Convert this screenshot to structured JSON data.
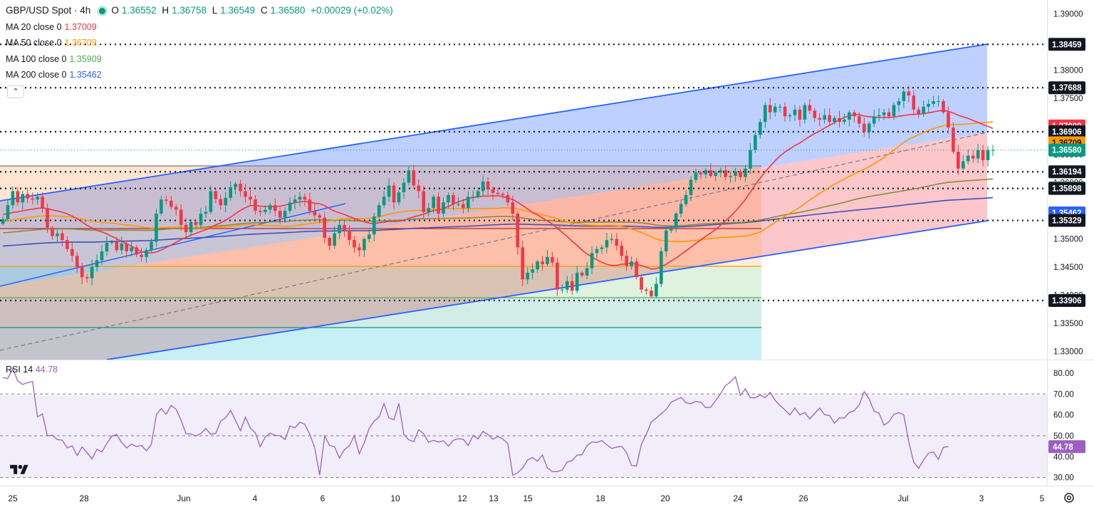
{
  "header": {
    "symbol": "GBP/USD Spot · 4h",
    "open_label": "O",
    "open": "1.36552",
    "high_label": "H",
    "high": "1.36758",
    "low_label": "L",
    "low": "1.36549",
    "close_label": "C",
    "close": "1.36580",
    "change": "+0.00029 (+0.02%)"
  },
  "indicators": [
    {
      "label": "MA 20 close 0",
      "value": "1.37009",
      "color": "#f23645"
    },
    {
      "label": "MA 50 close 0",
      "value": "1.36709",
      "color": "#ff9800"
    },
    {
      "label": "MA 100 close 0",
      "value": "1.35909",
      "color": "#4caf50"
    },
    {
      "label": "MA 200 close 0",
      "value": "1.35462",
      "color": "#2962ff"
    }
  ],
  "rsi": {
    "label": "RSI 14",
    "value": "44.78"
  },
  "colors": {
    "up": "#089981",
    "down": "#f23645",
    "channel": "#2962ff",
    "rsi": "#9c5fc4"
  },
  "chart_data": {
    "type": "candlestick",
    "title": "GBP/USD Spot · 4h",
    "x_ticks": [
      "25",
      "28",
      "Jun",
      "4",
      "6",
      "10",
      "12",
      "13",
      "15",
      "18",
      "20",
      "24",
      "26",
      "Jul",
      "3",
      "5"
    ],
    "y_ticks": [
      "1.39000",
      "1.38000",
      "1.37500",
      "1.37000",
      "1.36500",
      "1.36000",
      "1.35500",
      "1.35000",
      "1.34500",
      "1.34000",
      "1.33500",
      "1.33000"
    ],
    "ylim": [
      1.3265,
      1.3915
    ],
    "horizontal_levels": [
      1.38459,
      1.37688,
      1.36906,
      1.36194,
      1.35898,
      1.35329,
      1.33906
    ],
    "price_labels": [
      {
        "text": "1.38459",
        "value": 1.38459,
        "style": "level"
      },
      {
        "text": "1.37688",
        "value": 1.37688,
        "style": "level"
      },
      {
        "text": "1.37009",
        "value": 1.37009,
        "style": "ma20"
      },
      {
        "text": "1.36906",
        "value": 1.36906,
        "style": "level"
      },
      {
        "text": "1.36709",
        "value": 1.36709,
        "style": "ma50"
      },
      {
        "text": "1.36580",
        "value": 1.3658,
        "style": "last"
      },
      {
        "text": "1.36194",
        "value": 1.36194,
        "style": "level"
      },
      {
        "text": "1.35909",
        "value": 1.35909,
        "style": "ma100"
      },
      {
        "text": "1.35898",
        "value": 1.35898,
        "style": "level"
      },
      {
        "text": "1.35462",
        "value": 1.35462,
        "style": "ma200"
      },
      {
        "text": "1.35329",
        "value": 1.35329,
        "style": "level"
      },
      {
        "text": "1.33906",
        "value": 1.33906,
        "style": "level"
      }
    ],
    "fib_levels": [
      1.3622,
      1.3532,
      1.3452,
      1.3396,
      1.3342
    ],
    "close_path": [
      1.3535,
      1.356,
      1.3585,
      1.3565,
      1.358,
      1.3572,
      1.357,
      1.3575,
      1.3555,
      1.352,
      1.3505,
      1.351,
      1.3498,
      1.3482,
      1.347,
      1.345,
      1.3432,
      1.343,
      1.345,
      1.3462,
      1.3478,
      1.3493,
      1.3495,
      1.348,
      1.3492,
      1.3478,
      1.3485,
      1.3472,
      1.3468,
      1.348,
      1.3495,
      1.3545,
      1.357,
      1.3568,
      1.3557,
      1.3552,
      1.3525,
      1.3512,
      1.353,
      1.3525,
      1.3545,
      1.3548,
      1.3585,
      1.3571,
      1.356,
      1.3573,
      1.3592,
      1.3598,
      1.3585,
      1.3575,
      1.357,
      1.355,
      1.3548,
      1.3552,
      1.356,
      1.355,
      1.3538,
      1.355,
      1.3565,
      1.357,
      1.3575,
      1.357,
      1.355,
      1.3542,
      1.3538,
      1.3502,
      1.3488,
      1.351,
      1.3525,
      1.3515,
      1.3498,
      1.3485,
      1.348,
      1.35,
      1.3508,
      1.354,
      1.356,
      1.3575,
      1.3595,
      1.3565,
      1.3583,
      1.36,
      1.3622,
      1.3595,
      1.3585,
      1.3548,
      1.3555,
      1.3575,
      1.3545,
      1.3565,
      1.3578,
      1.3562,
      1.3562,
      1.3555,
      1.3575,
      1.3575,
      1.3585,
      1.3602,
      1.3588,
      1.3582,
      1.358,
      1.3578,
      1.3565,
      1.3545,
      1.3485,
      1.3428,
      1.344,
      1.3446,
      1.346,
      1.3455,
      1.3468,
      1.3458,
      1.341,
      1.341,
      1.3425,
      1.3408,
      1.344,
      1.3435,
      1.3448,
      1.3475,
      1.3482,
      1.3485,
      1.3498,
      1.35,
      1.3488,
      1.347,
      1.3452,
      1.346,
      1.3432,
      1.341,
      1.3408,
      1.3398,
      1.342,
      1.3478,
      1.3515,
      1.352,
      1.3545,
      1.3562,
      1.3578,
      1.3605,
      1.3618,
      1.3615,
      1.3622,
      1.3612,
      1.3618,
      1.3622,
      1.361,
      1.3612,
      1.362,
      1.361,
      1.3625,
      1.3658,
      1.3685,
      1.3708,
      1.3738,
      1.3725,
      1.3735,
      1.3735,
      1.3718,
      1.372,
      1.373,
      1.3712,
      1.3738,
      1.3728,
      1.3715,
      1.3712,
      1.372,
      1.3708,
      1.3715,
      1.3708,
      1.3712,
      1.3725,
      1.3718,
      1.3705,
      1.369,
      1.3705,
      1.3718,
      1.372,
      1.3725,
      1.3718,
      1.3738,
      1.3745,
      1.3762,
      1.3755,
      1.373,
      1.3722,
      1.3735,
      1.374,
      1.3745,
      1.3745,
      1.3725,
      1.3698,
      1.3655,
      1.3625,
      1.3638,
      1.3648,
      1.3643,
      1.3658,
      1.364,
      1.3658,
      1.3658
    ],
    "rsi": {
      "ylim": [
        27.5,
        83.5
      ],
      "y_ticks": [
        "80.00",
        "70.00",
        "60.00",
        "50.00",
        "40.00",
        "30.00"
      ],
      "bands": [
        70,
        50,
        30
      ],
      "values": [
        77.8,
        77.5,
        82.1,
        76.3,
        74.6,
        75.5,
        76,
        59,
        60.5,
        49.9,
        50.3,
        48.2,
        47.9,
        44.2,
        45.2,
        40.5,
        44.7,
        41.9,
        38.9,
        43.5,
        42.3,
        46.3,
        49.8,
        50.6,
        46.8,
        44.2,
        46,
        44.8,
        45.4,
        42.8,
        45.9,
        60.1,
        63.1,
        60.3,
        64.6,
        62.7,
        57.5,
        51,
        50.9,
        49.9,
        51.1,
        53.5,
        50.8,
        51.1,
        57,
        58.6,
        62.2,
        57.4,
        52.4,
        58.9,
        53.7,
        51.5,
        44.8,
        49.4,
        51.3,
        50.2,
        50,
        48.2,
        54.7,
        53.8,
        56.5,
        55.5,
        50.8,
        44.2,
        31.2,
        50,
        45.4,
        44.7,
        39.3,
        43.4,
        45.2,
        50,
        41.4,
        46.6,
        53.6,
        57,
        58.9,
        65.4,
        58.6,
        57.7,
        65.5,
        50.6,
        48.1,
        47.2,
        52.9,
        51,
        46.9,
        47.8,
        47,
        47.6,
        45,
        47.9,
        48.6,
        48.4,
        45.3,
        50.2,
        48.5,
        52.1,
        50.6,
        48.4,
        49.6,
        48.5,
        46.3,
        31.1,
        32.3,
        34.6,
        38.4,
        39.6,
        37.8,
        40.8,
        34.6,
        32.8,
        32.8,
        33.6,
        37.4,
        38.1,
        40.8,
        40.9,
        45.3,
        47.1,
        46.8,
        47.7,
        45.7,
        43.9,
        44.6,
        44.9,
        42,
        35.7,
        35.5,
        46,
        50.8,
        56.7,
        58.5,
        60.6,
        62.6,
        66.1,
        67.2,
        68.4,
        65.8,
        65.4,
        66.5,
        66.1,
        63.5,
        63.7,
        66.9,
        70.2,
        74.1,
        75.8,
        78.3,
        69.4,
        72.5,
        68.3,
        68.2,
        69.5,
        68.3,
        70.8,
        67,
        64.5,
        62.4,
        60,
        63.3,
        60,
        61.2,
        58.1,
        60.7,
        63.3,
        60.1,
        59.7,
        56,
        58.6,
        58.5,
        61.2,
        62,
        64.9,
        71.2,
        67.7,
        61.8,
        60.9,
        55.1,
        56.7,
        60.3,
        61.1,
        60,
        47.1,
        37.4,
        34.4,
        38.4,
        41.7,
        42.3,
        38.6,
        44.5,
        44.8
      ]
    }
  }
}
